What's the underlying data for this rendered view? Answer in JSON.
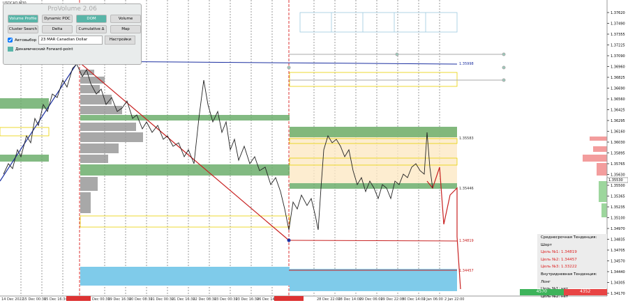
{
  "header": {
    "symbol": "USDCAD,M30"
  },
  "panel": {
    "title": "ProVolume 2.06",
    "buttons": [
      "Volume Profile",
      "Dynamic POC",
      "DOM",
      "Volume",
      "Cluster Search",
      "Delta",
      "Cumulative Δ",
      "Map"
    ],
    "auto_select": "Автовыбор",
    "instrument": "23 MAR Canadian Dollar",
    "settings": "Настройки",
    "forward_point": "Динамический Forward-point"
  },
  "price_axis": {
    "labels": [
      "1.37620",
      "1.37490",
      "1.37355",
      "1.37225",
      "1.37090",
      "1.36960",
      "1.36825",
      "1.36690",
      "1.36560",
      "1.36425",
      "1.36295",
      "1.36160",
      "1.36030",
      "1.35895",
      "1.35765",
      "1.35630",
      "1.35500",
      "1.35365",
      "1.35235",
      "1.35100",
      "1.34970",
      "1.34835",
      "1.34705",
      "1.34570",
      "1.34440",
      "1.34305",
      "1.34170"
    ],
    "current": "1.35530"
  },
  "time_axis": {
    "labels": [
      "14 Dec 2022",
      "15 Dec 00:30",
      "15 Dec 16:30",
      "16 Dec 08:30",
      "19 Dec 00:30",
      "19 Dec 16:30",
      "20 Dec 08:30",
      "21 Dec 00:30",
      "21 Dec 16:30",
      "22 Dec 08:30",
      "23 Dec 00:30",
      "23 Dec 16:30",
      "26 Dec 14:00",
      "27 Dec 05:30",
      "28 Dec 22:00",
      "28 Dec 14:00",
      "29 Dec 06:00",
      "29 Dec 22:00",
      "30 Dec 14:00",
      "2 Jan 06:00",
      "2 Jan 22:00"
    ]
  },
  "levels": [
    "1.35998",
    "1.35583",
    "1.35446",
    "1.34819",
    "1.34457"
  ],
  "info": {
    "lines": [
      "Среднесрочная Тенденция: Шорт",
      "Цель №1: 1.34819",
      "Цель №2: 1.34457",
      "Цель №3: 1.33222",
      "Внутридневная Тенденция: Лонг",
      "Цель №1: нет",
      "Цель №2: нет"
    ]
  },
  "footer": {
    "bid": "4570",
    "ask": "4352"
  }
}
